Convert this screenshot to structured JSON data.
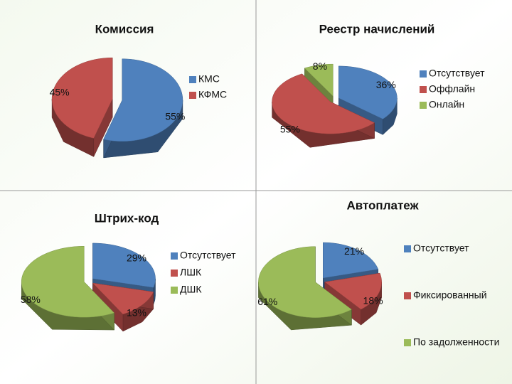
{
  "chart_data": [
    {
      "type": "pie",
      "title": "Комиссия",
      "categories": [
        "КМС",
        "КФМС"
      ],
      "values": [
        55,
        45
      ],
      "value_labels": [
        "55%",
        "45%"
      ],
      "colors": [
        "#4f81bd",
        "#c0504d"
      ]
    },
    {
      "type": "pie",
      "title": "Реестр начислений",
      "categories": [
        "Отсутствует",
        "Оффлайн",
        "Онлайн"
      ],
      "values": [
        36,
        55,
        8
      ],
      "value_labels": [
        "36%",
        "55%",
        "8%"
      ],
      "colors": [
        "#4f81bd",
        "#c0504d",
        "#9bbb59"
      ]
    },
    {
      "type": "pie",
      "title": "Штрих-код",
      "categories": [
        "Отсутствует",
        "ЛШК",
        "ДШК"
      ],
      "values": [
        29,
        13,
        58
      ],
      "value_labels": [
        "29%",
        "13%",
        "58%"
      ],
      "colors": [
        "#4f81bd",
        "#c0504d",
        "#9bbb59"
      ]
    },
    {
      "type": "pie",
      "title": "Автоплатеж",
      "categories": [
        "Отсутствует",
        "Фиксированный",
        "По задолженности"
      ],
      "values": [
        21,
        18,
        61
      ],
      "value_labels": [
        "21%",
        "18%",
        "61%"
      ],
      "colors": [
        "#4f81bd",
        "#c0504d",
        "#9bbb59"
      ]
    }
  ]
}
